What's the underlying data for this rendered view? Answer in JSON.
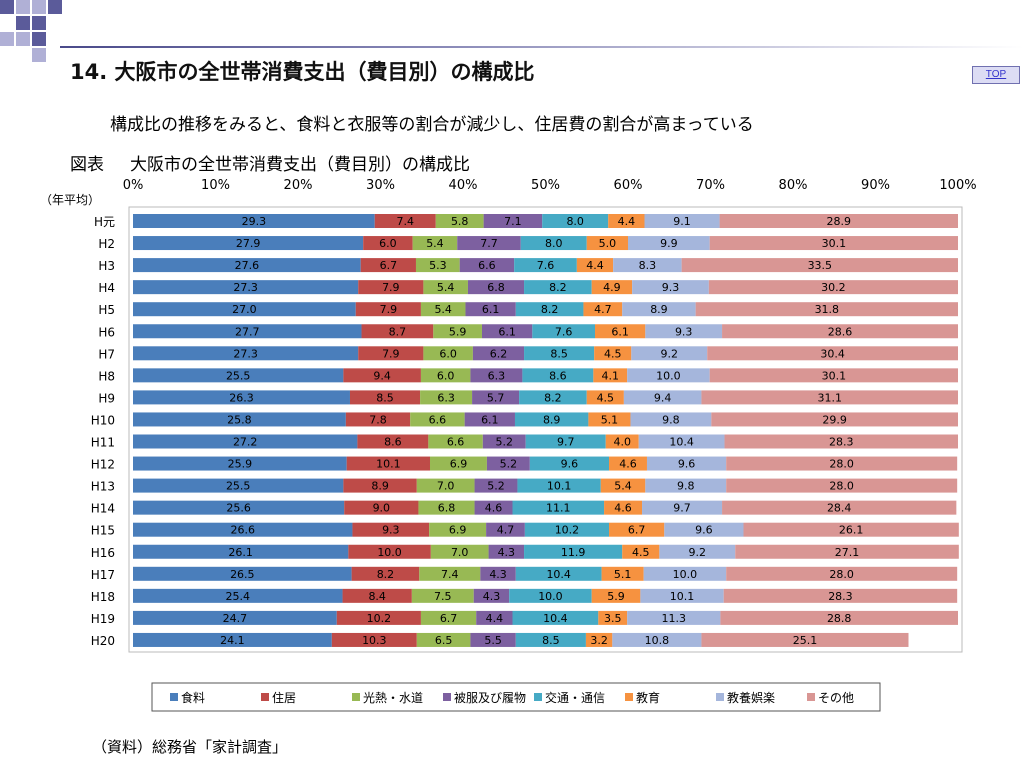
{
  "page": {
    "title": "14. 大阪市の全世帯消費支出（費目別）の構成比",
    "top_link": "TOP",
    "subtitle": "構成比の推移をみると、食料と衣服等の割合が減少し、住居費の割合が高まっている",
    "figure_prefix": "図表",
    "figure_title": "大阪市の全世帯消費支出（費目別）の構成比",
    "source": "（資料）総務省「家計調査」"
  },
  "colors": {
    "header_square_dark": "#5b5b9a",
    "header_square_light": "#b0b0d6"
  },
  "chart_data": {
    "type": "bar",
    "orientation": "horizontal",
    "stacked": true,
    "unit_note": "（年平均）",
    "xlim": [
      0,
      100
    ],
    "x_ticks": [
      "0%",
      "10%",
      "20%",
      "30%",
      "40%",
      "50%",
      "60%",
      "70%",
      "80%",
      "90%",
      "100%"
    ],
    "x_axis_position": "top",
    "legend_position": "bottom",
    "grid": false,
    "categories": [
      "H元",
      "H2",
      "H3",
      "H4",
      "H5",
      "H6",
      "H7",
      "H8",
      "H9",
      "H10",
      "H11",
      "H12",
      "H13",
      "H14",
      "H15",
      "H16",
      "H17",
      "H18",
      "H19",
      "H20"
    ],
    "series": [
      {
        "name": "食料",
        "color": "#4a7ebb",
        "values": [
          29.3,
          27.9,
          27.6,
          27.3,
          27.0,
          27.7,
          27.3,
          25.5,
          26.3,
          25.8,
          27.2,
          25.9,
          25.5,
          25.6,
          26.6,
          26.1,
          26.5,
          25.4,
          24.7,
          24.1
        ]
      },
      {
        "name": "住居",
        "color": "#be4b48",
        "values": [
          7.4,
          6.0,
          6.7,
          7.9,
          7.9,
          8.7,
          7.9,
          9.4,
          8.5,
          7.8,
          8.6,
          10.1,
          8.9,
          9.0,
          9.3,
          10.0,
          8.2,
          8.4,
          10.2,
          10.3
        ]
      },
      {
        "name": "光熱・水道",
        "color": "#98b954",
        "values": [
          5.8,
          5.4,
          5.3,
          5.4,
          5.4,
          5.9,
          6.0,
          6.0,
          6.3,
          6.6,
          6.6,
          6.9,
          7.0,
          6.8,
          6.9,
          7.0,
          7.4,
          7.5,
          6.7,
          6.5
        ]
      },
      {
        "name": "被服及び履物",
        "color": "#7d60a0",
        "values": [
          7.1,
          7.7,
          6.6,
          6.8,
          6.1,
          6.1,
          6.2,
          6.3,
          5.7,
          6.1,
          5.2,
          5.2,
          5.2,
          4.6,
          4.7,
          4.3,
          4.3,
          4.3,
          4.4,
          5.5
        ]
      },
      {
        "name": "交通・通信",
        "color": "#46aac5",
        "values": [
          8.0,
          8.0,
          7.6,
          8.2,
          8.2,
          7.6,
          8.5,
          8.6,
          8.2,
          8.9,
          9.7,
          9.6,
          10.1,
          11.1,
          10.2,
          11.9,
          10.4,
          10.0,
          10.4,
          8.5
        ]
      },
      {
        "name": "教育",
        "color": "#f69240",
        "values": [
          4.4,
          5.0,
          4.4,
          4.9,
          4.7,
          6.1,
          4.5,
          4.1,
          4.5,
          5.1,
          4.0,
          4.6,
          5.4,
          4.6,
          6.7,
          4.5,
          5.1,
          5.9,
          3.5,
          3.2
        ]
      },
      {
        "name": "教養娯楽",
        "color": "#a5b6dc",
        "values": [
          9.1,
          9.9,
          8.3,
          9.3,
          8.9,
          9.3,
          9.2,
          10.0,
          9.4,
          9.8,
          10.4,
          9.6,
          9.8,
          9.7,
          9.6,
          9.2,
          10.0,
          10.1,
          11.3,
          10.8
        ]
      },
      {
        "name": "その他",
        "color": "#d99694",
        "values": [
          28.9,
          30.1,
          33.5,
          30.2,
          31.8,
          28.6,
          30.4,
          30.1,
          31.1,
          29.9,
          28.3,
          28.0,
          28.0,
          28.4,
          26.1,
          27.1,
          28.0,
          28.3,
          28.8,
          25.1
        ]
      }
    ]
  }
}
